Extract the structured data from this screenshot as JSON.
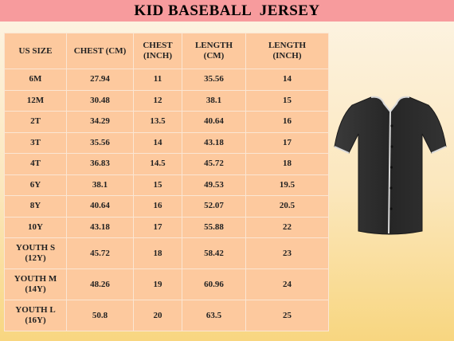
{
  "title": "KID BASEBALL  JERSEY",
  "table": {
    "headers": [
      [
        "US SIZE"
      ],
      [
        "CHEST (CM)"
      ],
      [
        "CHEST",
        "(INCH)"
      ],
      [
        "LENGTH",
        "(CM)"
      ],
      [
        "LENGTH",
        "(INCH)"
      ]
    ],
    "rows": [
      [
        [
          "6M"
        ],
        "27.94",
        "11",
        "35.56",
        "14"
      ],
      [
        [
          "12M"
        ],
        "30.48",
        "12",
        "38.1",
        "15"
      ],
      [
        [
          "2T"
        ],
        "34.29",
        "13.5",
        "40.64",
        "16"
      ],
      [
        [
          "3T"
        ],
        "35.56",
        "14",
        "43.18",
        "17"
      ],
      [
        [
          "4T"
        ],
        "36.83",
        "14.5",
        "45.72",
        "18"
      ],
      [
        [
          "6Y"
        ],
        "38.1",
        "15",
        "49.53",
        "19.5"
      ],
      [
        [
          "8Y"
        ],
        "40.64",
        "16",
        "52.07",
        "20.5"
      ],
      [
        [
          "10Y"
        ],
        "43.18",
        "17",
        "55.88",
        "22"
      ],
      [
        [
          "YOUTH S",
          "(12Y)"
        ],
        "45.72",
        "18",
        "58.42",
        "23"
      ],
      [
        [
          "YOUTH M",
          "(14Y)"
        ],
        "48.26",
        "19",
        "60.96",
        "24"
      ],
      [
        [
          "YOUTH L",
          "(16Y)"
        ],
        "50.8",
        "20",
        "63.5",
        "25"
      ]
    ]
  },
  "jersey": {
    "icon": "baseball-jersey-icon",
    "body_color": "#2b2b2b",
    "piping_color": "#d9d9d9"
  }
}
